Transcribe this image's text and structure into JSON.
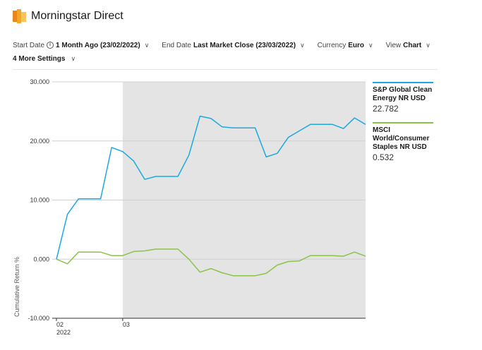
{
  "app": {
    "title": "Morningstar Direct"
  },
  "settings": {
    "start_date": {
      "label": "Start Date",
      "value": "1 Month Ago (23/02/2022)"
    },
    "end_date": {
      "label": "End Date",
      "value": "Last Market Close (23/03/2022)"
    },
    "currency": {
      "label": "Currency",
      "value": "Euro"
    },
    "view": {
      "label": "View",
      "value": "Chart"
    },
    "more": "4 More Settings"
  },
  "colors": {
    "series1": "#1ba9e1",
    "series2": "#8bc34a",
    "shade": "#e4e4e4"
  },
  "chart_data": {
    "type": "line",
    "ylabel": "Cumulative Return %",
    "ylim": [
      -10,
      30
    ],
    "yticks": [
      "30.000",
      "20.000",
      "10.000",
      "0.000",
      "-10.000"
    ],
    "ytick_values": [
      30,
      20,
      10,
      0,
      -10
    ],
    "xticks": [
      {
        "label": "02",
        "sublabel": "2022",
        "index": 0
      },
      {
        "label": "03",
        "sublabel": "",
        "index": 6
      }
    ],
    "shaded_from_index": 6,
    "series": [
      {
        "name": "S&P Global Clean Energy NR USD",
        "last_value": "22.782",
        "values": [
          0,
          7.6,
          10.2,
          10.2,
          10.2,
          18.9,
          18.2,
          16.6,
          13.5,
          14.0,
          14.0,
          14.0,
          17.6,
          24.2,
          23.8,
          22.4,
          22.2,
          22.2,
          22.2,
          17.3,
          17.9,
          20.6,
          21.7,
          22.8,
          22.8,
          22.8,
          22.1,
          23.9,
          22.8
        ]
      },
      {
        "name": "MSCI World/Consumer Staples NR USD",
        "last_value": "0.532",
        "values": [
          0,
          -0.8,
          1.2,
          1.2,
          1.2,
          0.6,
          0.6,
          1.3,
          1.4,
          1.7,
          1.7,
          1.7,
          0,
          -2.2,
          -1.6,
          -2.3,
          -2.8,
          -2.8,
          -2.8,
          -2.4,
          -1.0,
          -0.4,
          -0.3,
          0.6,
          0.6,
          0.6,
          0.5,
          1.2,
          0.5
        ]
      }
    ]
  }
}
